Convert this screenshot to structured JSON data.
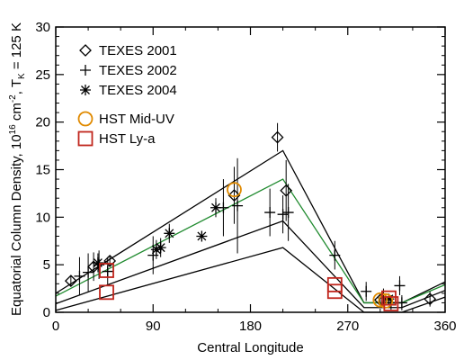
{
  "chart_data": {
    "type": "scatter",
    "title": "",
    "xlabel": "Central Longitude",
    "ylabel": "Equatorial Column Density, 10^16 cm^-2, T_K = 125 K",
    "ylabel_parts": {
      "a": "Equatorial Column Density, 10",
      "b": "16",
      "c": " cm",
      "d": "-2",
      "e": ", T",
      "f": "K",
      "g": " = 125 K"
    },
    "xlim": [
      0,
      360
    ],
    "ylim": [
      0,
      30
    ],
    "x_ticks": [
      0,
      90,
      180,
      270,
      360
    ],
    "x_tick_labels": [
      "0",
      "90",
      "180",
      "270",
      "360"
    ],
    "y_ticks": [
      0,
      5,
      10,
      15,
      20,
      25,
      30
    ],
    "y_tick_labels": [
      "0",
      "5",
      "10",
      "15",
      "20",
      "25",
      "30"
    ],
    "grid": false,
    "legend_position": "top-left",
    "legend": [
      {
        "label": "TEXES 2001",
        "marker": "diamond",
        "color": "#000000"
      },
      {
        "label": "TEXES 2002",
        "marker": "plus",
        "color": "#000000"
      },
      {
        "label": "TEXES 2004",
        "marker": "asterisk",
        "color": "#000000"
      },
      {
        "label": "HST Mid-UV",
        "marker": "circle",
        "color": "#e08a00"
      },
      {
        "label": "HST Ly-a",
        "marker": "square",
        "color": "#c0261d"
      }
    ],
    "series": [
      {
        "name": "TEXES 2001",
        "marker": "diamond",
        "color": "#000000",
        "points": [
          {
            "x": 14,
            "y": 3.3,
            "err": 0.6
          },
          {
            "x": 35,
            "y": 4.8,
            "err": 1.5
          },
          {
            "x": 50,
            "y": 5.4,
            "err": 0.6
          },
          {
            "x": 165,
            "y": 12.3,
            "err": 3.0
          },
          {
            "x": 205,
            "y": 18.4,
            "err": 1.5
          },
          {
            "x": 213,
            "y": 12.8,
            "err": 3.2
          },
          {
            "x": 300,
            "y": 1.3,
            "err": 0.6
          },
          {
            "x": 346,
            "y": 1.4,
            "err": 0.8
          }
        ]
      },
      {
        "name": "TEXES 2002",
        "marker": "plus",
        "color": "#000000",
        "points": [
          {
            "x": 22,
            "y": 3.8,
            "err": 2.0
          },
          {
            "x": 30,
            "y": 4.2,
            "err": 2.0
          },
          {
            "x": 40,
            "y": 5.0,
            "err": 1.5
          },
          {
            "x": 48,
            "y": 4.3,
            "err": 1.5
          },
          {
            "x": 90,
            "y": 6.0,
            "err": 2.0
          },
          {
            "x": 155,
            "y": 11.0,
            "err": 3.0
          },
          {
            "x": 168,
            "y": 11.2,
            "err": 5.0
          },
          {
            "x": 198,
            "y": 10.5,
            "err": 2.5
          },
          {
            "x": 210,
            "y": 10.3,
            "err": 2.0
          },
          {
            "x": 215,
            "y": 10.5,
            "err": 3.0
          },
          {
            "x": 258,
            "y": 6.0,
            "err": 1.5
          },
          {
            "x": 287,
            "y": 2.2,
            "err": 1.0
          },
          {
            "x": 303,
            "y": 1.5,
            "err": 1.0
          },
          {
            "x": 310,
            "y": 1.0,
            "err": 0.8
          },
          {
            "x": 318,
            "y": 2.8,
            "err": 1.0
          },
          {
            "x": 320,
            "y": 1.0,
            "err": 0.8
          }
        ]
      },
      {
        "name": "TEXES 2004",
        "marker": "asterisk",
        "color": "#000000",
        "points": [
          {
            "x": 39,
            "y": 5.2,
            "err": 1.0
          },
          {
            "x": 93,
            "y": 6.6,
            "err": 1.0
          },
          {
            "x": 97,
            "y": 6.8,
            "err": 1.0
          },
          {
            "x": 105,
            "y": 8.3,
            "err": 1.0
          },
          {
            "x": 135,
            "y": 8.0,
            "err": 0.0
          },
          {
            "x": 148,
            "y": 11.0,
            "err": 1.0
          },
          {
            "x": 308,
            "y": 1.4,
            "err": 0.0
          }
        ]
      },
      {
        "name": "HST Mid-UV",
        "marker": "circle",
        "color": "#e08a00",
        "points": [
          {
            "x": 165,
            "y": 12.9
          },
          {
            "x": 300,
            "y": 1.3
          },
          {
            "x": 305,
            "y": 1.2
          }
        ]
      },
      {
        "name": "HST Ly-a",
        "marker": "square",
        "color": "#c0261d",
        "points": [
          {
            "x": 47,
            "y": 4.4
          },
          {
            "x": 47,
            "y": 2.1
          },
          {
            "x": 258,
            "y": 2.2
          },
          {
            "x": 258,
            "y": 2.9
          },
          {
            "x": 308,
            "y": 1.5
          },
          {
            "x": 310,
            "y": 0.9
          }
        ]
      }
    ],
    "model_lines": [
      {
        "color": "#000000",
        "x": [
          0,
          210,
          285,
          320,
          360
        ],
        "y": [
          2.0,
          17.0,
          1.0,
          1.0,
          3.2
        ]
      },
      {
        "color": "#1f8a2e",
        "x": [
          0,
          210,
          285,
          320,
          360
        ],
        "y": [
          1.7,
          14.0,
          1.0,
          1.0,
          2.9
        ]
      },
      {
        "color": "#000000",
        "x": [
          0,
          210,
          285,
          320,
          360
        ],
        "y": [
          0.9,
          9.6,
          0.5,
          0.5,
          2.3
        ]
      },
      {
        "color": "#000000",
        "x": [
          0,
          210,
          285,
          320,
          360
        ],
        "y": [
          0.2,
          6.8,
          0.0,
          0.0,
          1.6
        ]
      }
    ]
  }
}
